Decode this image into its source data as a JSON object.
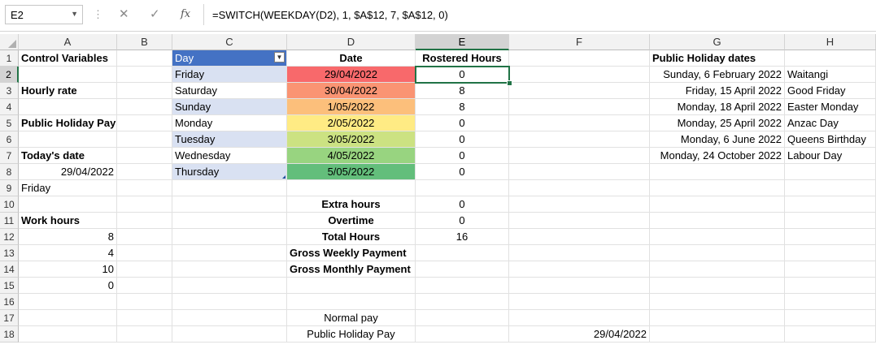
{
  "formula_bar": {
    "name_box": "E2",
    "cancel_icon": "✕",
    "enter_icon": "✓",
    "fx_label": "fx",
    "formula": "=SWITCH(WEEKDAY(D2), 1, $A$12, 7, $A$12, 0)"
  },
  "columns": [
    "A",
    "B",
    "C",
    "D",
    "E",
    "F",
    "G",
    "H"
  ],
  "rows": [
    "1",
    "2",
    "3",
    "4",
    "5",
    "6",
    "7",
    "8",
    "9",
    "10",
    "11",
    "12",
    "13",
    "14",
    "15",
    "16",
    "17",
    "18"
  ],
  "selection": {
    "column": "E",
    "row": "2"
  },
  "colors": {
    "table_header": "#4472c4",
    "table_band": "#d9e1f2",
    "excel_green": "#217346",
    "date_scale": [
      "#f8696b",
      "#fa9473",
      "#fcbf7b",
      "#ffeb84",
      "#cce282",
      "#98d480",
      "#63be7b"
    ]
  },
  "cells": {
    "A1": "Control Variables",
    "A3": "Hourly rate",
    "A5": "Public Holiday Pay",
    "A7": "Today's date",
    "A8": "29/04/2022",
    "A9": "Friday",
    "A11": "Work hours",
    "A12": "8",
    "A13": "4",
    "A14": "10",
    "A15": "0",
    "C1": "Day",
    "C2": "Friday",
    "C3": "Saturday",
    "C4": "Sunday",
    "C5": "Monday",
    "C6": "Tuesday",
    "C7": "Wednesday",
    "C8": "Thursday",
    "D1": "Date",
    "D2": "29/04/2022",
    "D3": "30/04/2022",
    "D4": "1/05/2022",
    "D5": "2/05/2022",
    "D6": "3/05/2022",
    "D7": "4/05/2022",
    "D8": "5/05/2022",
    "D10": "Extra hours",
    "D11": "Overtime",
    "D12": "Total Hours",
    "D13": "Gross Weekly Payment",
    "D14": "Gross Monthly Payment",
    "D17": "Normal pay",
    "D18": "Public Holiday Pay",
    "E1": "Rostered Hours",
    "E2": "0",
    "E3": "8",
    "E4": "8",
    "E5": "0",
    "E6": "0",
    "E7": "0",
    "E8": "0",
    "E10": "0",
    "E11": "0",
    "E12": "16",
    "F18": "29/04/2022",
    "G1": "Public Holiday dates",
    "G2": "Sunday, 6 February 2022",
    "G3": "Friday, 15 April 2022",
    "G4": "Monday, 18 April 2022",
    "G5": "Monday, 25 April 2022",
    "G6": "Monday, 6 June 2022",
    "G7": "Monday, 24 October 2022",
    "H2": "Waitangi",
    "H3": "Good Friday",
    "H4": "Easter Monday",
    "H5": "Anzac Day",
    "H6": "Queens Birthday",
    "H7": "Labour Day"
  }
}
